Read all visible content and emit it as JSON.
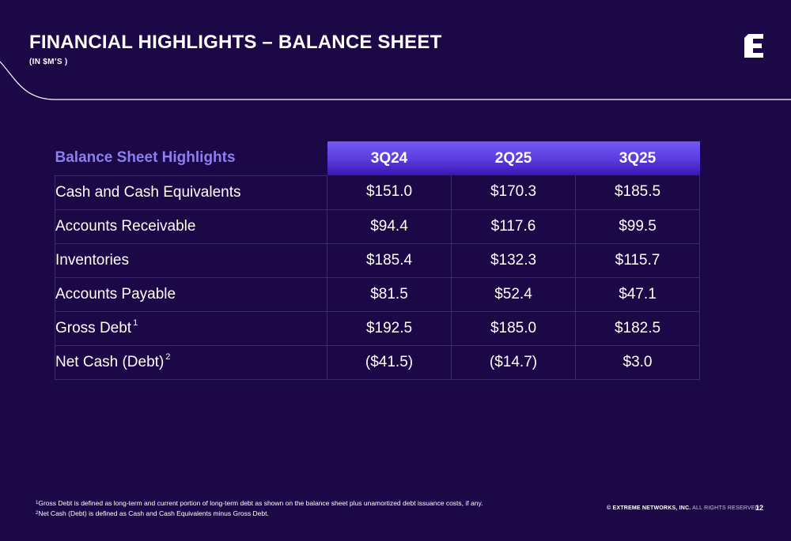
{
  "header": {
    "title": "FINANCIAL HIGHLIGHTS – BALANCE SHEET",
    "subtitle": "(IN $M’S )"
  },
  "table": {
    "header_label": "Balance Sheet Highlights",
    "periods": [
      "3Q24",
      "2Q25",
      "3Q25"
    ],
    "rows": [
      {
        "label": "Cash and Cash Equivalents",
        "sup": "",
        "values": [
          "$151.0",
          "$170.3",
          "$185.5"
        ]
      },
      {
        "label": "Accounts Receivable",
        "sup": "",
        "values": [
          "$94.4",
          "$117.6",
          "$99.5"
        ]
      },
      {
        "label": "Inventories",
        "sup": "",
        "values": [
          "$185.4",
          "$132.3",
          "$115.7"
        ]
      },
      {
        "label": "Accounts Payable",
        "sup": "",
        "values": [
          "$81.5",
          "$52.4",
          "$47.1"
        ]
      },
      {
        "label": "Gross Debt",
        "sup": "1",
        "values": [
          "$192.5",
          "$185.0",
          "$182.5"
        ]
      },
      {
        "label": "Net Cash (Debt)",
        "sup": "2",
        "values": [
          "($41.5)",
          "($14.7)",
          "$3.0"
        ]
      }
    ]
  },
  "footnotes": [
    {
      "num": "1",
      "text": "Gross Debt is defined as long-term and current portion of long-term debt as shown on the balance sheet plus unamortized debt issuance costs, if any."
    },
    {
      "num": "2",
      "text": "Net Cash (Debt) is defined as Cash and Cash Equivalents minus Gross Debt."
    }
  ],
  "footer": {
    "copyright_bold": "© EXTREME NETWORKS, INC.",
    "copyright_rest": "ALL RIGHTS RESERVED.",
    "page_number": "12"
  },
  "colors": {
    "background": "#1c0846",
    "accent_label": "#8c7ff0",
    "header_gradient_top": "#7359ef",
    "header_gradient_bottom": "#3c14b4"
  },
  "logo_icon": "extreme-networks-e-icon"
}
